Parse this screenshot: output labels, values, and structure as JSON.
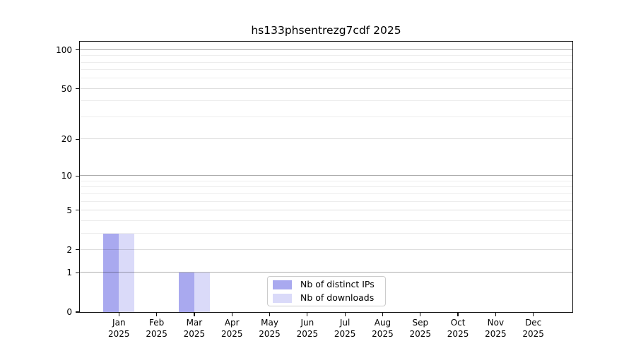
{
  "title": "hs133phsentrezg7cdf 2025",
  "chart_data": {
    "type": "bar",
    "title": "hs133phsentrezg7cdf 2025",
    "xlabel": "",
    "ylabel": "",
    "x_categories": [
      {
        "month": "Jan",
        "year": "2025"
      },
      {
        "month": "Feb",
        "year": "2025"
      },
      {
        "month": "Mar",
        "year": "2025"
      },
      {
        "month": "Apr",
        "year": "2025"
      },
      {
        "month": "May",
        "year": "2025"
      },
      {
        "month": "Jun",
        "year": "2025"
      },
      {
        "month": "Jul",
        "year": "2025"
      },
      {
        "month": "Aug",
        "year": "2025"
      },
      {
        "month": "Sep",
        "year": "2025"
      },
      {
        "month": "Oct",
        "year": "2025"
      },
      {
        "month": "Nov",
        "year": "2025"
      },
      {
        "month": "Dec",
        "year": "2025"
      }
    ],
    "series": [
      {
        "name": "Nb of distinct IPs",
        "color": "#a9a9ef",
        "values": [
          3,
          0,
          1,
          0,
          0,
          0,
          0,
          0,
          0,
          0,
          0,
          0
        ]
      },
      {
        "name": "Nb of downloads",
        "color": "#dadaf9",
        "values": [
          3,
          0,
          1,
          0,
          0,
          0,
          0,
          0,
          0,
          0,
          0,
          0
        ]
      }
    ],
    "y_ticks": [
      0,
      1,
      2,
      5,
      10,
      20,
      50,
      100
    ],
    "y_minor_gridlines": [
      3,
      4,
      6,
      7,
      8,
      9,
      30,
      40,
      60,
      70,
      80,
      90
    ],
    "y_major_emphasis": [
      1,
      10,
      100
    ],
    "scale": "log1p",
    "ylim": [
      0,
      116
    ],
    "grid": "horizontal",
    "legend_position": "lower center"
  }
}
